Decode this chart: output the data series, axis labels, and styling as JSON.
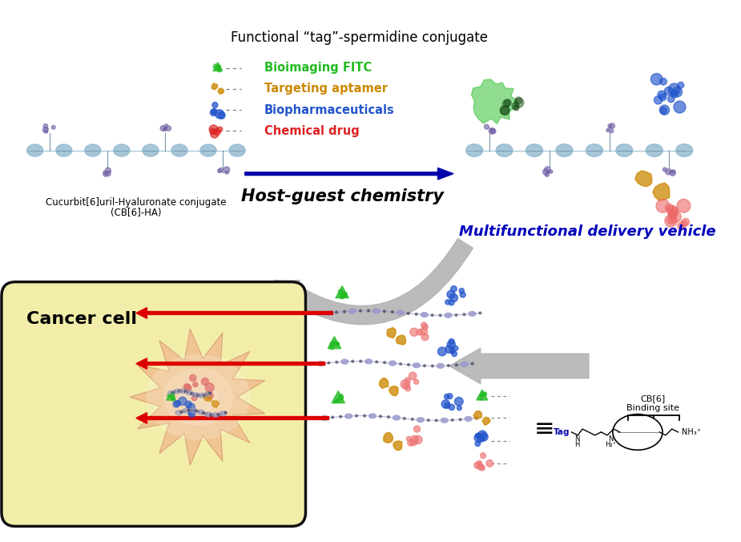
{
  "bg_color": "#ffffff",
  "top_label": "Functional “tag”-spermidine conjugate",
  "bottom_left_label1": "Cucurbit[6]uril-Hyaluronate conjugate",
  "bottom_left_label2": "(CB[6]-HA)",
  "arrow_label": "Host-guest chemistry",
  "right_label": "Multifunctional delivery vehicle",
  "cancer_cell_label": "Cancer cell",
  "legend_items": [
    {
      "text": "Bioimaging FITC",
      "color": "#22bb22"
    },
    {
      "text": "Targeting aptamer",
      "color": "#cc8800"
    },
    {
      "text": "Biopharmaceuticals",
      "color": "#2255cc"
    },
    {
      "text": "Chemical drug",
      "color": "#dd2222"
    }
  ],
  "cb6_label1": "CB[6]",
  "cb6_label2": "Binding site",
  "tag_label": "Tag",
  "equiv_symbol": "≡",
  "colors": {
    "green": "#22bb22",
    "orange": "#cc8800",
    "blue": "#2255cc",
    "red": "#dd2222",
    "chain_blue": "#8ab4cc",
    "chain_purple": "#9988bb",
    "arrow_blue": "#0000aa",
    "arrow_gray": "#b0b0b0",
    "cell_outline": "#111111",
    "cell_fill": "#f2eeaa",
    "burst_fill": "#f0c090",
    "red_arrow": "#dd0000",
    "pink_cluster": "#dd6666"
  }
}
